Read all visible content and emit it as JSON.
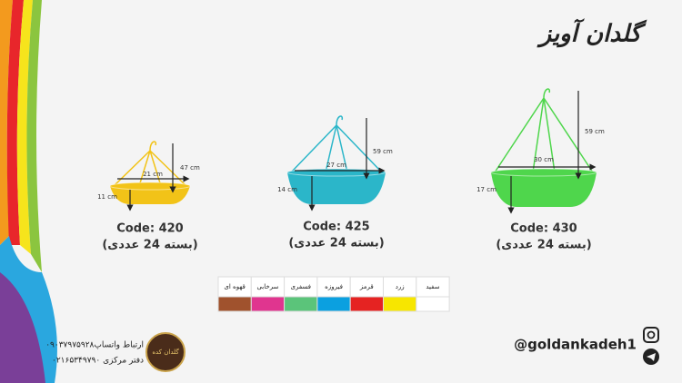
{
  "header": {
    "title": "گلدان آویز"
  },
  "products": [
    {
      "code": "Code: 420",
      "pack": "(بسته 24 عددی)",
      "width": "21 cm",
      "height": "47 cm",
      "depth": "11 cm",
      "color": "#f2c318"
    },
    {
      "code": "Code: 425",
      "pack": "(بسته 24 عددی)",
      "width": "27 cm",
      "height": "59 cm",
      "depth": "14 cm",
      "color": "#2bb6c9"
    },
    {
      "code": "Code: 430",
      "pack": "(بسته 24 عددی)",
      "width": "30 cm",
      "height": "59 cm",
      "depth": "17 cm",
      "color": "#4fd64c"
    }
  ],
  "colors": [
    {
      "label": "قهوه ای",
      "color": "#a0522d"
    },
    {
      "label": "سرخابی",
      "color": "#e0358f"
    },
    {
      "label": "فسفری",
      "color": "#5bc47a"
    },
    {
      "label": "فیروزه",
      "color": "#0ba0e0"
    },
    {
      "label": "قرمز",
      "color": "#e52322"
    },
    {
      "label": "زرد",
      "color": "#f7e600"
    },
    {
      "label": "سفید",
      "color": "#ffffff"
    }
  ],
  "footer": {
    "handle": "@goldankadeh1",
    "logo": "گلدان کده",
    "whatsapp": "ارتباط واتساپ۰۹۰۳۷۹۷۵۹۲۸",
    "office": "دفتر مرکزی ۰۲۱۶۵۳۴۹۷۹۰"
  }
}
